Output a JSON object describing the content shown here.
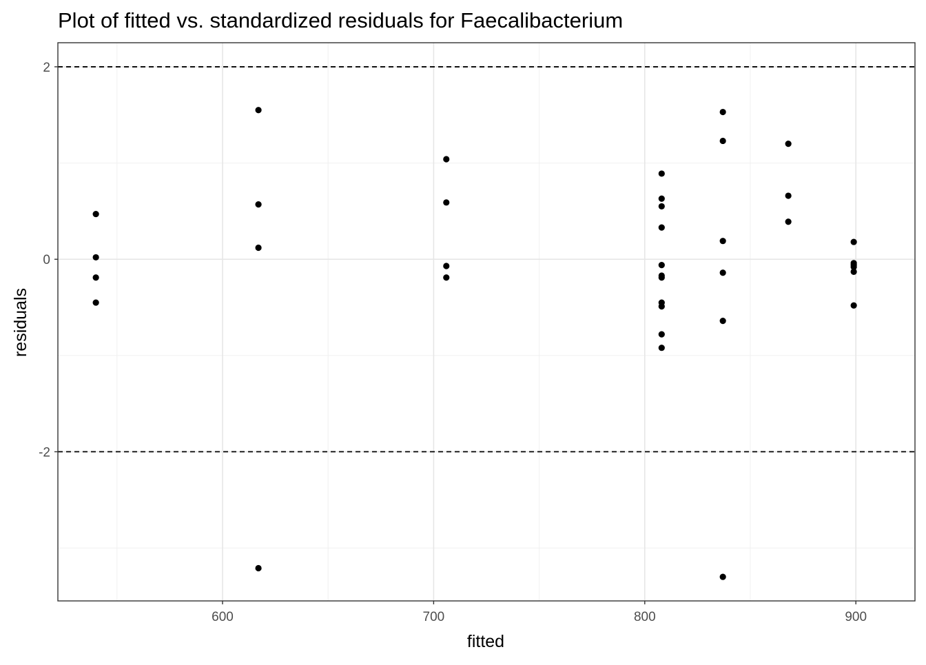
{
  "chart_data": {
    "type": "scatter",
    "title": "Plot of fitted vs. standardized residuals for Faecalibacterium",
    "xlabel": "fitted",
    "ylabel": "residuals",
    "xlim": [
      522,
      928
    ],
    "ylim": [
      -3.55,
      2.25
    ],
    "x_ticks": [
      600,
      700,
      800,
      900
    ],
    "x_tick_labels": [
      "600",
      "700",
      "800",
      "900"
    ],
    "x_minor_ticks": [
      550,
      650,
      750,
      850
    ],
    "y_ticks": [
      -2,
      0,
      2
    ],
    "y_tick_labels": [
      "-2",
      "0",
      "2"
    ],
    "y_minor_ticks": [
      -3,
      -1,
      1
    ],
    "reference_lines": [
      2,
      -2
    ],
    "reference_line_style": "dashed",
    "grid": true,
    "legend": "none",
    "point_color": "#000000",
    "points": [
      {
        "x": 540,
        "y": 0.47
      },
      {
        "x": 540,
        "y": 0.02
      },
      {
        "x": 540,
        "y": -0.19
      },
      {
        "x": 540,
        "y": -0.45
      },
      {
        "x": 617,
        "y": 1.55
      },
      {
        "x": 617,
        "y": 0.57
      },
      {
        "x": 617,
        "y": 0.12
      },
      {
        "x": 617,
        "y": -3.21
      },
      {
        "x": 706,
        "y": 1.04
      },
      {
        "x": 706,
        "y": 0.59
      },
      {
        "x": 706,
        "y": -0.07
      },
      {
        "x": 706,
        "y": -0.19
      },
      {
        "x": 808,
        "y": 0.89
      },
      {
        "x": 808,
        "y": 0.63
      },
      {
        "x": 808,
        "y": 0.55
      },
      {
        "x": 808,
        "y": 0.33
      },
      {
        "x": 808,
        "y": -0.06
      },
      {
        "x": 808,
        "y": -0.17
      },
      {
        "x": 808,
        "y": -0.19
      },
      {
        "x": 808,
        "y": -0.45
      },
      {
        "x": 808,
        "y": -0.49
      },
      {
        "x": 808,
        "y": -0.78
      },
      {
        "x": 808,
        "y": -0.92
      },
      {
        "x": 837,
        "y": 1.53
      },
      {
        "x": 837,
        "y": 1.23
      },
      {
        "x": 837,
        "y": 0.19
      },
      {
        "x": 837,
        "y": -0.14
      },
      {
        "x": 837,
        "y": -0.64
      },
      {
        "x": 837,
        "y": -3.3
      },
      {
        "x": 868,
        "y": 1.2
      },
      {
        "x": 868,
        "y": 0.66
      },
      {
        "x": 868,
        "y": 0.39
      },
      {
        "x": 899,
        "y": 0.18
      },
      {
        "x": 899,
        "y": -0.04
      },
      {
        "x": 899,
        "y": -0.06
      },
      {
        "x": 899,
        "y": -0.08
      },
      {
        "x": 899,
        "y": -0.13
      },
      {
        "x": 899,
        "y": -0.48
      }
    ]
  }
}
